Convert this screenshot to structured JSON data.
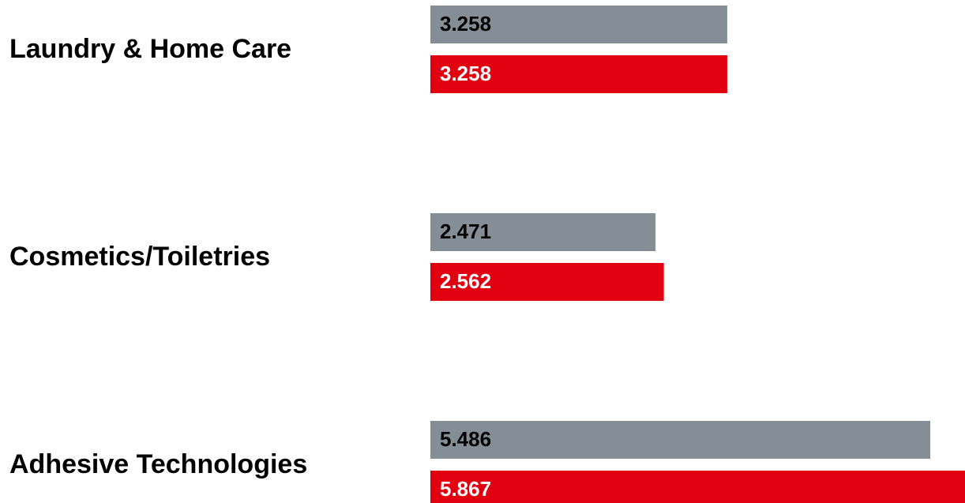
{
  "chart_data": {
    "type": "bar",
    "orientation": "horizontal",
    "categories": [
      "Laundry & Home Care",
      "Cosmetics/Toiletries",
      "Adhesive Technologies"
    ],
    "series": [
      {
        "color": "#858e96",
        "label_color": "#000000",
        "values": [
          3.258,
          2.471,
          5.486
        ]
      },
      {
        "color": "#e1000f",
        "label_color": "#ffffff",
        "values": [
          3.258,
          2.562,
          5.867
        ]
      }
    ],
    "xlim": [
      0,
      5.867
    ]
  }
}
